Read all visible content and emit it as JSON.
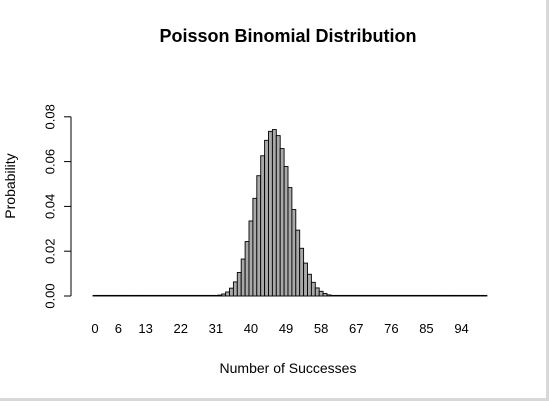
{
  "chart_data": {
    "type": "bar",
    "title": "Poisson Binomial Distribution",
    "xlabel": "Number of Successes",
    "ylabel": "Probability",
    "x": [
      0,
      1,
      2,
      3,
      4,
      5,
      6,
      7,
      8,
      9,
      10,
      11,
      12,
      13,
      14,
      15,
      16,
      17,
      18,
      19,
      20,
      21,
      22,
      23,
      24,
      25,
      26,
      27,
      28,
      29,
      30,
      31,
      32,
      33,
      34,
      35,
      36,
      37,
      38,
      39,
      40,
      41,
      42,
      43,
      44,
      45,
      46,
      47,
      48,
      49,
      50,
      51,
      52,
      53,
      54,
      55,
      56,
      57,
      58,
      59,
      60,
      61,
      62,
      63,
      64,
      65,
      66,
      67,
      68,
      69,
      70,
      71,
      72,
      73,
      74,
      75,
      76,
      77,
      78,
      79,
      80,
      81,
      82,
      83,
      84,
      85,
      86,
      87,
      88,
      89,
      90,
      91,
      92,
      93,
      94,
      95,
      96,
      97,
      98,
      99,
      100
    ],
    "values": [
      0,
      0,
      0,
      0,
      0,
      0,
      0,
      0,
      0,
      0,
      0,
      0,
      0,
      0,
      0,
      0,
      0,
      0,
      0,
      0,
      0,
      0,
      0,
      0,
      0,
      0,
      0,
      0,
      0,
      0,
      0.0001,
      0.0002,
      0.0004,
      0.0009,
      0.0018,
      0.0035,
      0.0063,
      0.0105,
      0.0165,
      0.0243,
      0.0335,
      0.0436,
      0.0537,
      0.0626,
      0.0695,
      0.0735,
      0.0743,
      0.0716,
      0.0658,
      0.0578,
      0.0484,
      0.0386,
      0.0294,
      0.0213,
      0.0147,
      0.0097,
      0.0061,
      0.0036,
      0.0021,
      0.0011,
      0.0005,
      0.0002,
      0.0001,
      5e-05,
      0,
      0,
      0,
      0,
      0,
      0,
      0,
      0,
      0,
      0,
      0,
      0,
      0,
      0,
      0,
      0,
      0,
      0,
      0,
      0,
      0,
      0,
      0,
      0,
      0,
      0,
      0,
      0,
      0,
      0,
      0,
      0,
      0,
      0,
      0,
      0,
      0
    ],
    "xtick_labels": [
      "0",
      "6",
      "13",
      "22",
      "31",
      "40",
      "49",
      "58",
      "67",
      "76",
      "85",
      "94"
    ],
    "ytick_labels": [
      "0.00",
      "0.02",
      "0.04",
      "0.06",
      "0.08"
    ],
    "ytick_values": [
      0,
      0.02,
      0.04,
      0.06,
      0.08
    ],
    "ylim": [
      0,
      0.08
    ],
    "bar_fill": "#a9a9a9",
    "bar_stroke": "#000000",
    "grid": false,
    "legend": false
  }
}
